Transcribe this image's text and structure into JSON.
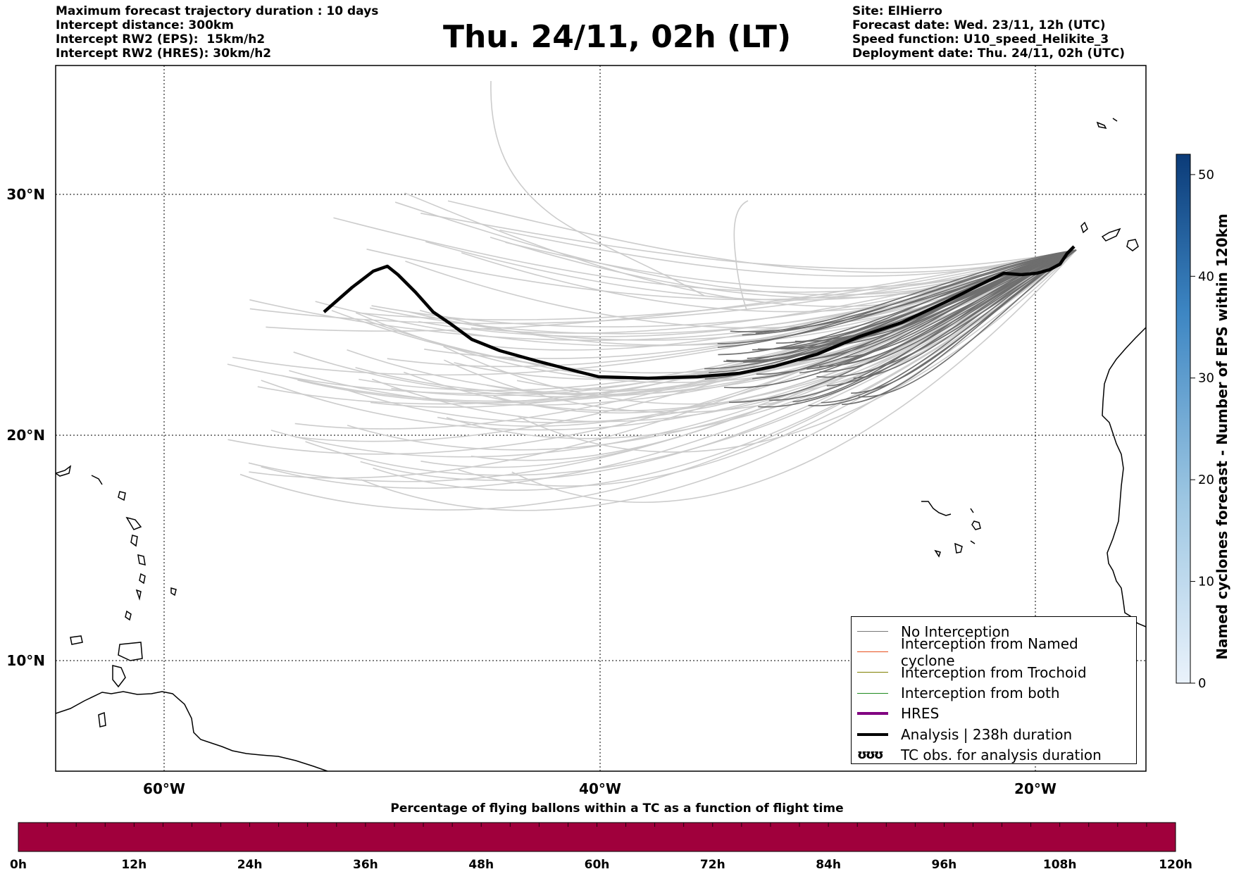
{
  "header_left": [
    "Maximum forecast trajectory duration : 10 days",
    "Intercept distance: 300km",
    "Intercept RW2 (EPS):  15km/h2",
    "Intercept RW2 (HRES): 30km/h2"
  ],
  "title": "Thu. 24/11, 02h (LT)",
  "header_right": [
    "Site: ElHierro",
    "Forecast date: Wed. 23/11, 12h (UTC)",
    "Speed function: U10_speed_Helikite_3",
    "Deployment date: Thu. 24/11, 02h (UTC)"
  ],
  "map": {
    "lon_labels": [
      "60°W",
      "40°W",
      "20°W"
    ],
    "lat_labels": [
      "30°N",
      "20°N",
      "10°N"
    ]
  },
  "legend": [
    {
      "label": "No Interception",
      "color": "#777777",
      "style": "thin"
    },
    {
      "label": "Interception from Named cyclone",
      "color": "#e8501e",
      "style": "thin"
    },
    {
      "label": "Interception from Trochoid",
      "color": "#808000",
      "style": "thin"
    },
    {
      "label": "Interception from both",
      "color": "#1f8a1f",
      "style": "thin"
    },
    {
      "label": "HRES",
      "color": "#800080",
      "style": "thick"
    },
    {
      "label": "Analysis | 238h duration",
      "color": "#000000",
      "style": "thick"
    },
    {
      "label": "TC obs. for analysis duration",
      "symbol": "ʊʊʊ"
    }
  ],
  "colorbar_right": {
    "label": "Named cyclones forecast - Number of EPS within 120km",
    "ticks": [
      "0",
      "10",
      "20",
      "30",
      "40",
      "50"
    ]
  },
  "colorbar_bottom": {
    "title": "Percentage of flying ballons within a TC as a function of flight time",
    "ticks": [
      "0h",
      "12h",
      "24h",
      "36h",
      "48h",
      "60h",
      "72h",
      "84h",
      "96h",
      "108h",
      "120h"
    ],
    "fill_color": "#a0003c"
  }
}
